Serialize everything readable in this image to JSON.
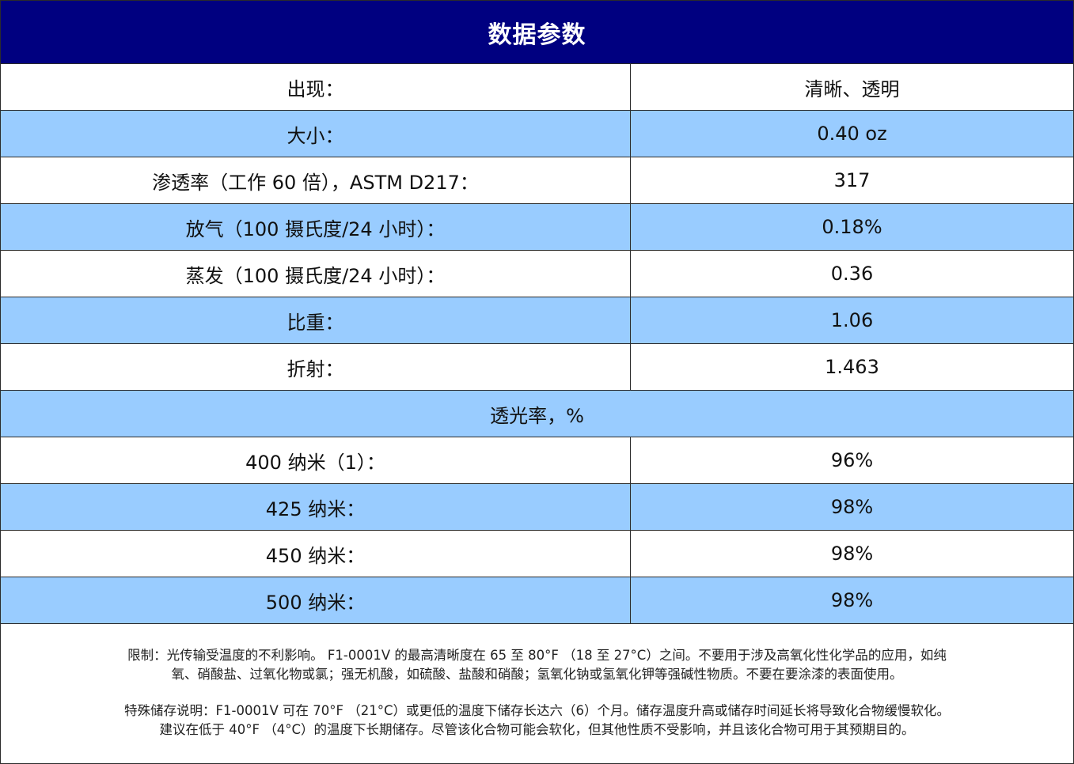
{
  "title": "数据参数",
  "rows": [
    {
      "label": "出现：",
      "value": "清晰、透明"
    },
    {
      "label": "大小：",
      "value": "0.40 oz"
    },
    {
      "label": "渗透率（工作 60 倍），ASTM D217：",
      "value": "317"
    },
    {
      "label": "放气（100 摄氏度/24 小时）：",
      "value": "0.18%"
    },
    {
      "label": "蒸发（100 摄氏度/24 小时）：",
      "value": "0.36"
    },
    {
      "label": "比重：",
      "value": "1.06"
    },
    {
      "label": "折射：",
      "value": "1.463"
    }
  ],
  "transmission_section": {
    "heading": "透光率，%",
    "rows": [
      {
        "label": "400 纳米（1）：",
        "value": "96%"
      },
      {
        "label": "425 纳米：",
        "value": "98%"
      },
      {
        "label": "450 纳米：",
        "value": "98%"
      },
      {
        "label": "500 纳米：",
        "value": "98%"
      }
    ]
  },
  "notes": {
    "limitation_line1": "限制：光传输受温度的不利影响。 F1-0001V 的最高清晰度在 65 至 80°F （18 至 27°C）之间。不要用于涉及高氧化性化学品的应用，如纯",
    "limitation_line2": "氧、硝酸盐、过氧化物或氯；强无机酸，如硫酸、盐酸和硝酸；氢氧化钠或氢氧化钾等强碱性物质。不要在要涂漆的表面使用。",
    "storage_line1": "特殊储存说明：F1-0001V 可在 70°F （21°C）或更低的温度下储存长达六（6）个月。储存温度升高或储存时间延长将导致化合物缓慢软化。",
    "storage_line2": "建议在低于 40°F （4°C）的温度下长期储存。尽管该化合物可能会软化，但其他性质不受影响，并且该化合物可用于其预期目的。"
  },
  "colors": {
    "header_bg": "#000080",
    "alt_row_bg": "#99ccff"
  }
}
